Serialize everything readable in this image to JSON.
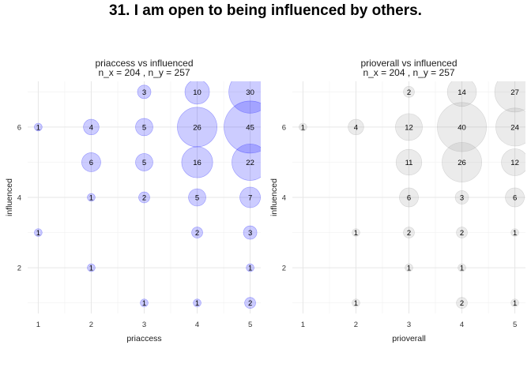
{
  "title": "31. I am open to being influenced by others.",
  "chart_data": [
    {
      "type": "scatter",
      "title": "priaccess vs influenced",
      "subtitle": "n_x = 204 , n_y = 257",
      "xlabel": "priaccess",
      "ylabel": "influenced",
      "x_ticks": [
        "1",
        "2",
        "3",
        "4",
        "5"
      ],
      "y_ticks": [
        "2",
        "4",
        "6"
      ],
      "xlim": [
        0.8,
        5.2
      ],
      "ylim": [
        0.7,
        7.3
      ],
      "bubble_color": "#0000ff",
      "points": [
        {
          "x": 3,
          "y": 7,
          "n": 3
        },
        {
          "x": 4,
          "y": 7,
          "n": 10
        },
        {
          "x": 5,
          "y": 7,
          "n": 30
        },
        {
          "x": 1,
          "y": 6,
          "n": 1
        },
        {
          "x": 2,
          "y": 6,
          "n": 4
        },
        {
          "x": 3,
          "y": 6,
          "n": 5
        },
        {
          "x": 4,
          "y": 6,
          "n": 26
        },
        {
          "x": 5,
          "y": 6,
          "n": 45
        },
        {
          "x": 2,
          "y": 5,
          "n": 6
        },
        {
          "x": 3,
          "y": 5,
          "n": 5
        },
        {
          "x": 4,
          "y": 5,
          "n": 16
        },
        {
          "x": 5,
          "y": 5,
          "n": 22
        },
        {
          "x": 2,
          "y": 4,
          "n": 1
        },
        {
          "x": 3,
          "y": 4,
          "n": 2
        },
        {
          "x": 4,
          "y": 4,
          "n": 5
        },
        {
          "x": 5,
          "y": 4,
          "n": 7
        },
        {
          "x": 1,
          "y": 3,
          "n": 1
        },
        {
          "x": 4,
          "y": 3,
          "n": 2
        },
        {
          "x": 5,
          "y": 3,
          "n": 3
        },
        {
          "x": 2,
          "y": 2,
          "n": 1
        },
        {
          "x": 5,
          "y": 2,
          "n": 1
        },
        {
          "x": 3,
          "y": 1,
          "n": 1
        },
        {
          "x": 4,
          "y": 1,
          "n": 1
        },
        {
          "x": 5,
          "y": 1,
          "n": 2
        }
      ]
    },
    {
      "type": "scatter",
      "title": "prioverall vs influenced",
      "subtitle": "n_x = 204 , n_y = 257",
      "xlabel": "prioverall",
      "ylabel": "influenced",
      "x_ticks": [
        "1",
        "2",
        "3",
        "4",
        "5"
      ],
      "y_ticks": [
        "2",
        "4",
        "6"
      ],
      "xlim": [
        0.8,
        5.2
      ],
      "ylim": [
        0.7,
        7.3
      ],
      "bubble_color": "#999999",
      "points": [
        {
          "x": 3,
          "y": 7,
          "n": 2
        },
        {
          "x": 4,
          "y": 7,
          "n": 14
        },
        {
          "x": 5,
          "y": 7,
          "n": 27
        },
        {
          "x": 1,
          "y": 6,
          "n": 1
        },
        {
          "x": 2,
          "y": 6,
          "n": 4
        },
        {
          "x": 3,
          "y": 6,
          "n": 12
        },
        {
          "x": 4,
          "y": 6,
          "n": 40
        },
        {
          "x": 5,
          "y": 6,
          "n": 24
        },
        {
          "x": 3,
          "y": 5,
          "n": 11
        },
        {
          "x": 4,
          "y": 5,
          "n": 26
        },
        {
          "x": 5,
          "y": 5,
          "n": 12
        },
        {
          "x": 3,
          "y": 4,
          "n": 6
        },
        {
          "x": 4,
          "y": 4,
          "n": 3
        },
        {
          "x": 5,
          "y": 4,
          "n": 6
        },
        {
          "x": 2,
          "y": 3,
          "n": 1
        },
        {
          "x": 3,
          "y": 3,
          "n": 2
        },
        {
          "x": 4,
          "y": 3,
          "n": 2
        },
        {
          "x": 5,
          "y": 3,
          "n": 1
        },
        {
          "x": 3,
          "y": 2,
          "n": 1
        },
        {
          "x": 4,
          "y": 2,
          "n": 1
        },
        {
          "x": 2,
          "y": 1,
          "n": 1
        },
        {
          "x": 4,
          "y": 1,
          "n": 2
        },
        {
          "x": 5,
          "y": 1,
          "n": 1
        }
      ]
    }
  ]
}
